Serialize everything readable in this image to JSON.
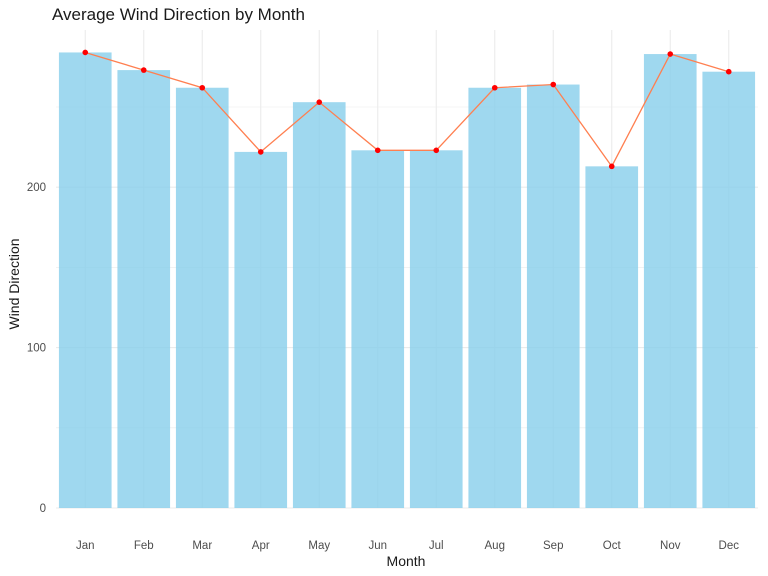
{
  "chart_data": {
    "type": "bar",
    "title": "Average Wind Direction by Month",
    "xlabel": "Month",
    "ylabel": "Wind Direction",
    "categories": [
      "Jan",
      "Feb",
      "Mar",
      "Apr",
      "May",
      "Jun",
      "Jul",
      "Aug",
      "Sep",
      "Oct",
      "Nov",
      "Dec"
    ],
    "series": [
      {
        "kind": "bar",
        "values": [
          284,
          273,
          262,
          222,
          253,
          223,
          223,
          262,
          264,
          213,
          283,
          272
        ]
      },
      {
        "kind": "line",
        "values": [
          284,
          273,
          262,
          222,
          253,
          223,
          223,
          262,
          264,
          213,
          283,
          272
        ]
      }
    ],
    "yticks": [
      0,
      100,
      200
    ],
    "ylim": [
      0,
      290
    ],
    "grid": true,
    "colors": {
      "bar": "#87ceeb",
      "line": "#ff7f50",
      "point": "#ff0000",
      "grid": "#ebebeb"
    }
  }
}
